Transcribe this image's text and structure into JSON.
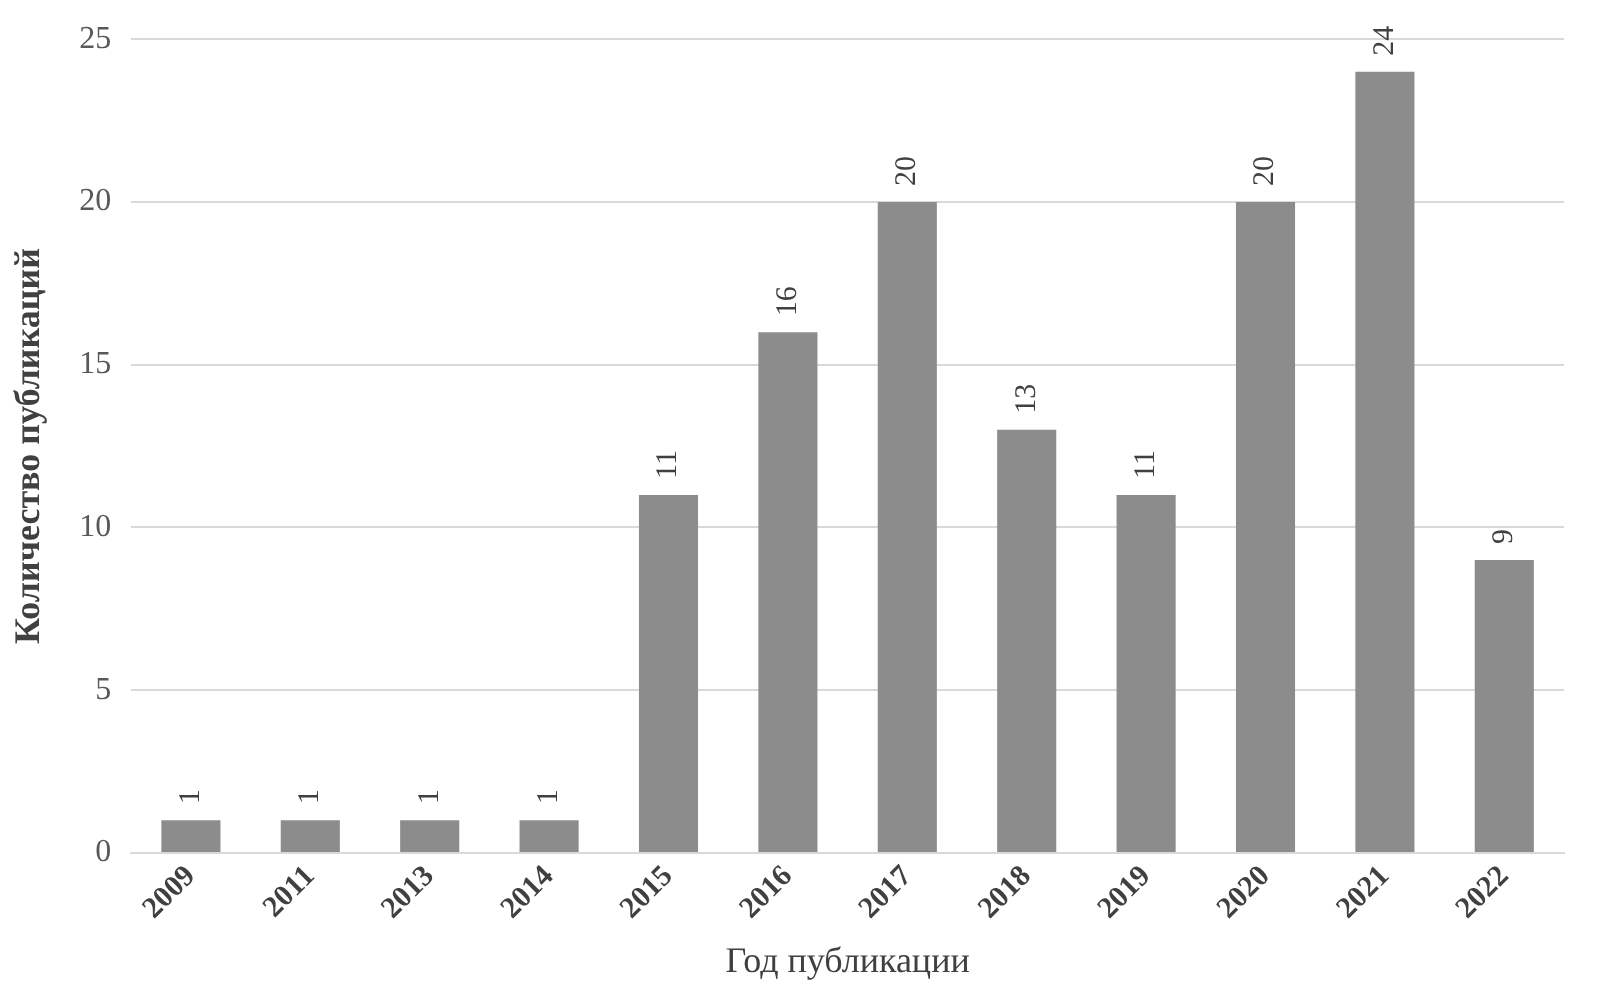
{
  "chart_data": {
    "type": "bar",
    "xlabel": "Год публикации",
    "ylabel": "Количество публикаций",
    "categories": [
      "2009",
      "2011",
      "2013",
      "2014",
      "2015",
      "2016",
      "2017",
      "2018",
      "2019",
      "2020",
      "2021",
      "2022"
    ],
    "values": [
      1,
      1,
      1,
      1,
      11,
      16,
      20,
      13,
      11,
      20,
      24,
      9
    ],
    "color": "#8c8c8c",
    "ylim": [
      0,
      25
    ],
    "yticks": [
      0,
      5,
      10,
      15,
      20,
      25
    ],
    "grid": "y",
    "data_labels": true,
    "legend": false
  }
}
